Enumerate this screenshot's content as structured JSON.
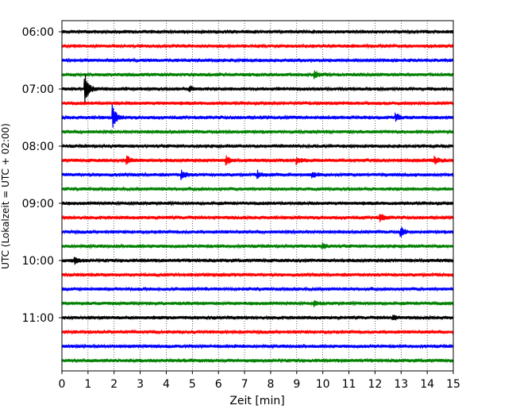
{
  "chart_data": {
    "type": "line",
    "title": "",
    "xlabel": "Zeit  [min]",
    "ylabel": "UTC (Lokalzeit = UTC + 02:00)",
    "xlim": [
      0,
      15
    ],
    "x_ticks": [
      "0",
      "1",
      "2",
      "3",
      "4",
      "5",
      "6",
      "7",
      "8",
      "9",
      "10",
      "11",
      "12",
      "13",
      "14",
      "15"
    ],
    "y_ticks": [
      "06:00",
      "07:00",
      "08:00",
      "09:00",
      "10:00",
      "11:00"
    ],
    "grid": "vertical dotted",
    "trace_interval_minutes": 15,
    "first_trace": "06:00",
    "color_cycle": [
      "#000000",
      "#ff0000",
      "#0000ff",
      "#008000"
    ],
    "series": [
      {
        "start": "06:00",
        "color": "#000000",
        "events": []
      },
      {
        "start": "06:15",
        "color": "#ff0000",
        "events": []
      },
      {
        "start": "06:30",
        "color": "#0000ff",
        "events": []
      },
      {
        "start": "06:45",
        "color": "#008000",
        "events": [
          {
            "t": 9.7,
            "amp": 4
          }
        ]
      },
      {
        "start": "07:00",
        "color": "#000000",
        "events": [
          {
            "t": 0.88,
            "amp": 20
          },
          {
            "t": 4.9,
            "amp": 3
          }
        ]
      },
      {
        "start": "07:15",
        "color": "#ff0000",
        "events": []
      },
      {
        "start": "07:30",
        "color": "#0000ff",
        "events": [
          {
            "t": 1.95,
            "amp": 14
          },
          {
            "t": 12.8,
            "amp": 5
          }
        ]
      },
      {
        "start": "07:45",
        "color": "#008000",
        "events": []
      },
      {
        "start": "08:00",
        "color": "#000000",
        "events": []
      },
      {
        "start": "08:15",
        "color": "#ff0000",
        "events": [
          {
            "t": 2.5,
            "amp": 5
          },
          {
            "t": 6.3,
            "amp": 6
          },
          {
            "t": 9.0,
            "amp": 4
          },
          {
            "t": 14.3,
            "amp": 4
          }
        ]
      },
      {
        "start": "08:30",
        "color": "#0000ff",
        "events": [
          {
            "t": 4.6,
            "amp": 5
          },
          {
            "t": 7.5,
            "amp": 4
          },
          {
            "t": 9.6,
            "amp": 3
          }
        ]
      },
      {
        "start": "08:45",
        "color": "#008000",
        "events": []
      },
      {
        "start": "09:00",
        "color": "#000000",
        "events": []
      },
      {
        "start": "09:15",
        "color": "#ff0000",
        "events": [
          {
            "t": 12.2,
            "amp": 5
          }
        ]
      },
      {
        "start": "09:30",
        "color": "#0000ff",
        "events": [
          {
            "t": 13.0,
            "amp": 5
          }
        ]
      },
      {
        "start": "09:45",
        "color": "#008000",
        "events": [
          {
            "t": 10.0,
            "amp": 3
          }
        ]
      },
      {
        "start": "10:00",
        "color": "#000000",
        "events": [
          {
            "t": 0.5,
            "amp": 4
          }
        ]
      },
      {
        "start": "10:15",
        "color": "#ff0000",
        "events": []
      },
      {
        "start": "10:30",
        "color": "#0000ff",
        "events": []
      },
      {
        "start": "10:45",
        "color": "#008000",
        "events": [
          {
            "t": 9.7,
            "amp": 3
          }
        ]
      },
      {
        "start": "11:00",
        "color": "#000000",
        "events": [
          {
            "t": 12.7,
            "amp": 3
          }
        ]
      },
      {
        "start": "11:15",
        "color": "#ff0000",
        "events": []
      },
      {
        "start": "11:30",
        "color": "#0000ff",
        "events": []
      },
      {
        "start": "11:45",
        "color": "#008000",
        "events": []
      }
    ]
  }
}
